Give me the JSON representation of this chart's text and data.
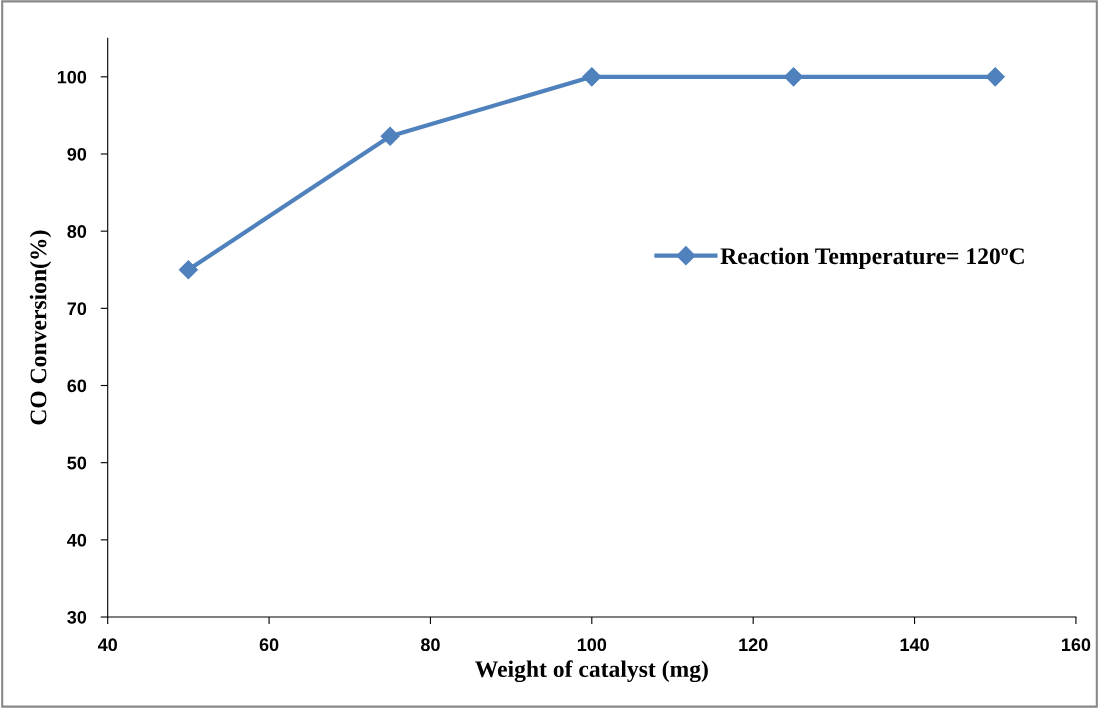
{
  "chart_data": {
    "type": "line",
    "xlabel": "Weight of catalyst (mg)",
    "ylabel": "CO Conversion(%)",
    "x": [
      50,
      75,
      100,
      125,
      150
    ],
    "series": [
      {
        "name": "Reaction Temperature= 120ºC",
        "color": "#4f81bd",
        "values": [
          75,
          92.3,
          100,
          100,
          100
        ]
      }
    ],
    "xlim": [
      40,
      160
    ],
    "xticks": [
      40,
      60,
      80,
      100,
      120,
      140,
      160
    ],
    "ylim": [
      30,
      105
    ],
    "yticks": [
      30,
      40,
      50,
      60,
      70,
      80,
      90,
      100
    ],
    "grid": false,
    "legend": "right",
    "marker": "diamond",
    "line_style": "solid"
  }
}
